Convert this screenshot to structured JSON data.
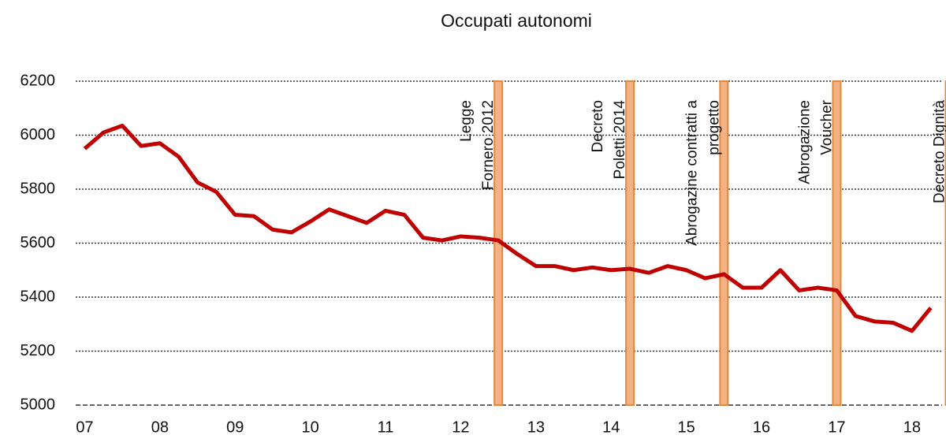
{
  "chart_data": {
    "type": "line",
    "title": "Occupati autonomi",
    "x": [
      2007,
      2007.25,
      2007.5,
      2007.75,
      2008,
      2008.25,
      2008.5,
      2008.75,
      2009,
      2009.25,
      2009.5,
      2009.75,
      2010,
      2010.25,
      2010.5,
      2010.75,
      2011,
      2011.25,
      2011.5,
      2011.75,
      2012,
      2012.25,
      2012.5,
      2012.75,
      2013,
      2013.25,
      2013.5,
      2013.75,
      2014,
      2014.25,
      2014.5,
      2014.75,
      2015,
      2015.25,
      2015.5,
      2015.75,
      2016,
      2016.25,
      2016.5,
      2016.75,
      2017,
      2017.25,
      2017.5,
      2017.75,
      2018,
      2018.25
    ],
    "series": [
      {
        "name": "Occupati autonomi",
        "color": "#c00000",
        "values": [
          5950,
          6010,
          6035,
          5960,
          5970,
          5920,
          5825,
          5790,
          5705,
          5700,
          5650,
          5640,
          5680,
          5725,
          5700,
          5675,
          5720,
          5705,
          5620,
          5610,
          5625,
          5620,
          5610,
          5560,
          5515,
          5515,
          5500,
          5510,
          5500,
          5505,
          5490,
          5515,
          5500,
          5470,
          5485,
          5435,
          5435,
          5500,
          5425,
          5435,
          5425,
          5330,
          5310,
          5305,
          5275,
          5360
        ]
      }
    ],
    "xlim": [
      2006.88,
      2018.4
    ],
    "xticks": [
      {
        "value": 2007,
        "label": "07"
      },
      {
        "value": 2008,
        "label": "08"
      },
      {
        "value": 2009,
        "label": "09"
      },
      {
        "value": 2010,
        "label": "10"
      },
      {
        "value": 2011,
        "label": "11"
      },
      {
        "value": 2012,
        "label": "12"
      },
      {
        "value": 2013,
        "label": "13"
      },
      {
        "value": 2014,
        "label": "14"
      },
      {
        "value": 2015,
        "label": "15"
      },
      {
        "value": 2016,
        "label": "16"
      },
      {
        "value": 2017,
        "label": "17"
      },
      {
        "value": 2018,
        "label": "18"
      }
    ],
    "ylim": [
      5000,
      6200
    ],
    "yticks": [
      5000,
      5200,
      5400,
      5600,
      5800,
      6000,
      6200
    ],
    "grid": true,
    "annotations": [
      {
        "x": 2012.5,
        "lines": [
          "Legge",
          "Fornero 2012"
        ]
      },
      {
        "x": 2014.25,
        "lines": [
          "Decreto",
          "Poletti 2014"
        ]
      },
      {
        "x": 2015.5,
        "lines": [
          "Abrogazine contratti a",
          "progetto"
        ]
      },
      {
        "x": 2017,
        "lines": [
          "Abrogazione",
          "Voucher"
        ]
      },
      {
        "x": 2018.5,
        "lines": [
          "Decreto Dignità"
        ]
      }
    ]
  }
}
